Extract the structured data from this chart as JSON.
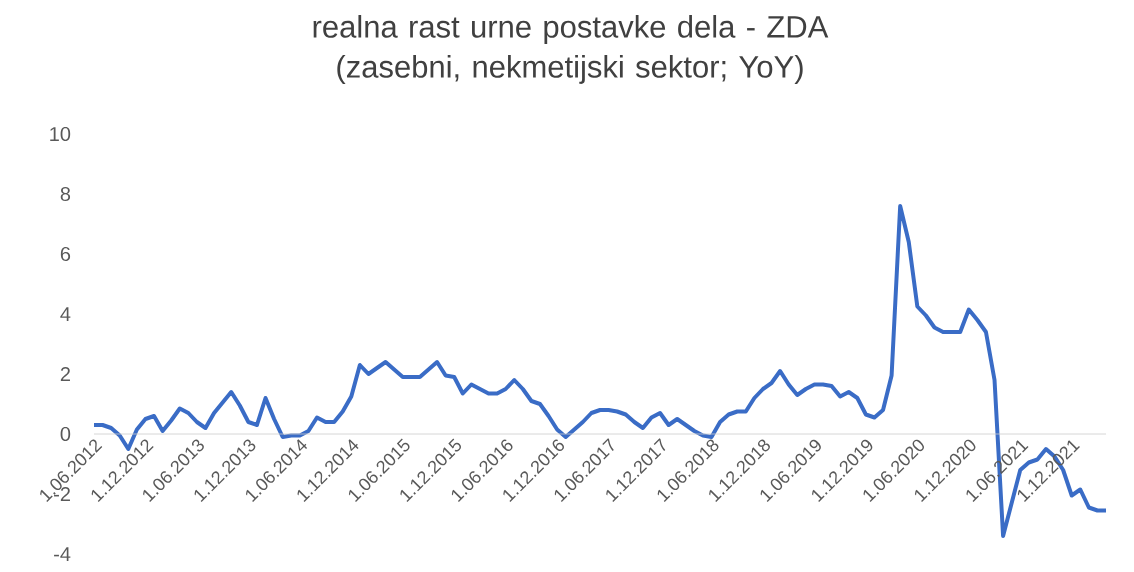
{
  "chart_data": {
    "type": "line",
    "title": "realna rast urne postavke dela - ZDA (zasebni, nekmetijski sektor; YoY)",
    "x": [
      "2012-06",
      "2012-07",
      "2012-08",
      "2012-09",
      "2012-10",
      "2012-11",
      "2012-12",
      "2013-01",
      "2013-02",
      "2013-03",
      "2013-04",
      "2013-05",
      "2013-06",
      "2013-07",
      "2013-08",
      "2013-09",
      "2013-10",
      "2013-11",
      "2013-12",
      "2014-01",
      "2014-02",
      "2014-03",
      "2014-04",
      "2014-05",
      "2014-06",
      "2014-07",
      "2014-08",
      "2014-09",
      "2014-10",
      "2014-11",
      "2014-12",
      "2015-01",
      "2015-02",
      "2015-03",
      "2015-04",
      "2015-05",
      "2015-06",
      "2015-07",
      "2015-08",
      "2015-09",
      "2015-10",
      "2015-11",
      "2015-12",
      "2016-01",
      "2016-02",
      "2016-03",
      "2016-04",
      "2016-05",
      "2016-06",
      "2016-07",
      "2016-08",
      "2016-09",
      "2016-10",
      "2016-11",
      "2016-12",
      "2017-01",
      "2017-02",
      "2017-03",
      "2017-04",
      "2017-05",
      "2017-06",
      "2017-07",
      "2017-08",
      "2017-09",
      "2017-10",
      "2017-11",
      "2017-12",
      "2018-01",
      "2018-02",
      "2018-03",
      "2018-04",
      "2018-05",
      "2018-06",
      "2018-07",
      "2018-08",
      "2018-09",
      "2018-10",
      "2018-11",
      "2018-12",
      "2019-01",
      "2019-02",
      "2019-03",
      "2019-04",
      "2019-05",
      "2019-06",
      "2019-07",
      "2019-08",
      "2019-09",
      "2019-10",
      "2019-11",
      "2019-12",
      "2020-01",
      "2020-02",
      "2020-03",
      "2020-04",
      "2020-05",
      "2020-06",
      "2020-07",
      "2020-08",
      "2020-09",
      "2020-10",
      "2020-11",
      "2020-12",
      "2021-01",
      "2021-02",
      "2021-03",
      "2021-04",
      "2021-05",
      "2021-06",
      "2021-07",
      "2021-08",
      "2021-09",
      "2021-10",
      "2021-11",
      "2021-12",
      "2022-01",
      "2022-02",
      "2022-03",
      "2022-04"
    ],
    "values": [
      0.3,
      0.3,
      0.2,
      -0.05,
      -0.5,
      0.15,
      0.5,
      0.6,
      0.1,
      0.45,
      0.85,
      0.7,
      0.4,
      0.2,
      0.7,
      1.05,
      1.4,
      0.95,
      0.4,
      0.3,
      1.2,
      0.5,
      -0.1,
      -0.05,
      -0.05,
      0.1,
      0.55,
      0.4,
      0.4,
      0.75,
      1.25,
      2.3,
      2.0,
      2.2,
      2.4,
      2.15,
      1.9,
      1.9,
      1.9,
      2.15,
      2.4,
      1.95,
      1.9,
      1.35,
      1.65,
      1.5,
      1.35,
      1.35,
      1.5,
      1.8,
      1.5,
      1.1,
      1.0,
      0.6,
      0.15,
      -0.1,
      0.15,
      0.4,
      0.7,
      0.8,
      0.8,
      0.75,
      0.65,
      0.4,
      0.2,
      0.55,
      0.7,
      0.3,
      0.5,
      0.3,
      0.1,
      -0.05,
      -0.1,
      0.4,
      0.65,
      0.75,
      0.75,
      1.2,
      1.5,
      1.7,
      2.1,
      1.65,
      1.3,
      1.5,
      1.65,
      1.65,
      1.6,
      1.25,
      1.4,
      1.2,
      0.65,
      0.55,
      0.8,
      1.95,
      7.6,
      6.4,
      4.25,
      3.95,
      3.55,
      3.4,
      3.4,
      3.4,
      4.15,
      3.8,
      3.4,
      1.8,
      -3.4,
      -2.3,
      -1.2,
      -0.95,
      -0.85,
      -0.5,
      -0.75,
      -1.2,
      -2.05,
      -1.85,
      -2.45,
      -2.55,
      -2.55
    ],
    "color": "#3a6cc6",
    "xlim": [
      "2012-06",
      "2022-04"
    ],
    "ylim": [
      -4,
      10
    ],
    "yticks": [
      -4,
      -2,
      0,
      2,
      4,
      6,
      8,
      10
    ],
    "xticks": [
      {
        "value": "2012-06",
        "label": "1.06.2012"
      },
      {
        "value": "2012-12",
        "label": "1.12.2012"
      },
      {
        "value": "2013-06",
        "label": "1.06.2013"
      },
      {
        "value": "2013-12",
        "label": "1.12.2013"
      },
      {
        "value": "2014-06",
        "label": "1.06.2014"
      },
      {
        "value": "2014-12",
        "label": "1.12.2014"
      },
      {
        "value": "2015-06",
        "label": "1.06.2015"
      },
      {
        "value": "2015-12",
        "label": "1.12.2015"
      },
      {
        "value": "2016-06",
        "label": "1.06.2016"
      },
      {
        "value": "2016-12",
        "label": "1.12.2016"
      },
      {
        "value": "2017-06",
        "label": "1.06.2017"
      },
      {
        "value": "2017-12",
        "label": "1.12.2017"
      },
      {
        "value": "2018-06",
        "label": "1.06.2018"
      },
      {
        "value": "2018-12",
        "label": "1.12.2018"
      },
      {
        "value": "2019-06",
        "label": "1.06.2019"
      },
      {
        "value": "2019-12",
        "label": "1.12.2019"
      },
      {
        "value": "2020-06",
        "label": "1.06.2020"
      },
      {
        "value": "2020-12",
        "label": "1.12.2020"
      },
      {
        "value": "2021-06",
        "label": "1.06.2021"
      },
      {
        "value": "2021-12",
        "label": "1.12.2021"
      }
    ]
  }
}
